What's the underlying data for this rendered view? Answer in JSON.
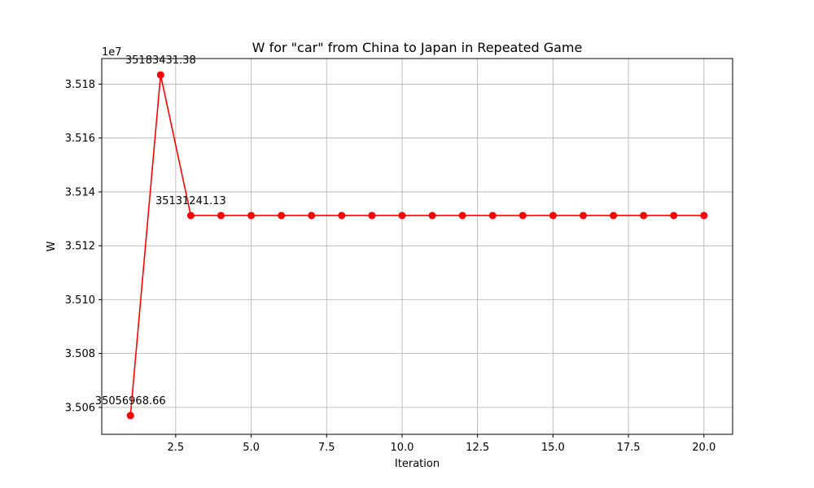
{
  "chart_data": {
    "type": "line",
    "title": "W for \"car\" from China to Japan in Repeated Game",
    "xlabel": "Iteration",
    "ylabel": "W",
    "y_offset_label": "1e7",
    "xlim": [
      0.05,
      20.95
    ],
    "ylim": [
      35050000,
      35189500
    ],
    "x_ticks": [
      2.5,
      5.0,
      7.5,
      10.0,
      12.5,
      15.0,
      17.5,
      20.0
    ],
    "x_tick_labels": [
      "2.5",
      "5.0",
      "7.5",
      "10.0",
      "12.5",
      "15.0",
      "17.5",
      "20.0"
    ],
    "y_ticks": [
      35060000,
      35080000,
      35100000,
      35120000,
      35140000,
      35160000,
      35180000
    ],
    "y_tick_labels": [
      "3.506",
      "3.508",
      "3.510",
      "3.512",
      "3.514",
      "3.516",
      "3.518"
    ],
    "grid": true,
    "series": [
      {
        "x": [
          1,
          2,
          3,
          4,
          5,
          6,
          7,
          8,
          9,
          10,
          11,
          12,
          13,
          14,
          15,
          16,
          17,
          18,
          19,
          20
        ],
        "values": [
          35056968.66,
          35183431.38,
          35131241.13,
          35131241.13,
          35131241.13,
          35131241.13,
          35131241.13,
          35131241.13,
          35131241.13,
          35131241.13,
          35131241.13,
          35131241.13,
          35131241.13,
          35131241.13,
          35131241.13,
          35131241.13,
          35131241.13,
          35131241.13,
          35131241.13,
          35131241.13
        ],
        "color": "#ff0000",
        "marker": "circle"
      }
    ],
    "annotations": [
      {
        "x": 1,
        "y": 35056968.66,
        "text": "35056968.66"
      },
      {
        "x": 2,
        "y": 35183431.38,
        "text": "35183431.38"
      },
      {
        "x": 3,
        "y": 35131241.13,
        "text": "35131241.13"
      }
    ],
    "colors": {
      "line": "#ff0000",
      "grid": "#b0b0b0",
      "axes": "#000000"
    }
  }
}
